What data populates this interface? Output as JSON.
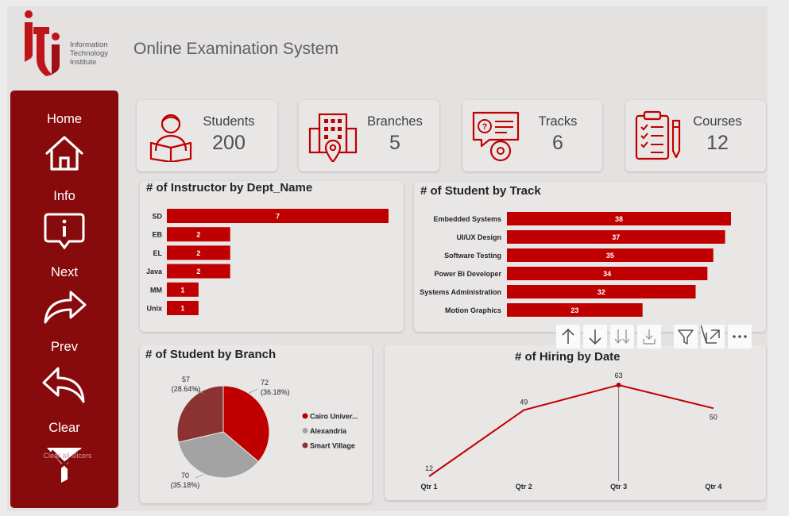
{
  "app": {
    "title": "Online Examination System",
    "logo_lines": [
      "Information",
      "Technology",
      "Institute"
    ],
    "logo_mark": "iti"
  },
  "sidebar": {
    "items": [
      {
        "label": "Home",
        "icon": "home-icon"
      },
      {
        "label": "Info",
        "icon": "info-icon"
      },
      {
        "label": "Next",
        "icon": "forward-arrow-icon"
      },
      {
        "label": "Prev",
        "icon": "back-arrow-icon"
      },
      {
        "label": "Clear",
        "icon": "clear-filter-icon"
      }
    ],
    "clear_overlay": "Clear all slicers"
  },
  "kpis": [
    {
      "label": "Students",
      "value": "200",
      "icon": "student-icon"
    },
    {
      "label": "Branches",
      "value": "5",
      "icon": "building-icon"
    },
    {
      "label": "Tracks",
      "value": "6",
      "icon": "track-icon"
    },
    {
      "label": "Courses",
      "value": "12",
      "icon": "clipboard-icon"
    }
  ],
  "colors": {
    "accent": "#c00000",
    "sidebar": "#870b0d",
    "grey": "#a0a0a0",
    "dark_red": "#8b3232"
  },
  "visual_toolbar": [
    "sort-ascending-icon",
    "sort-descending-icon",
    "expand-all-icon",
    "drill-down-icon",
    "filter-icon",
    "focus-mode-icon",
    "more-options-icon"
  ],
  "chart_data": [
    {
      "type": "bar",
      "orientation": "horizontal",
      "title": "# of Instructor by Dept_Name",
      "categories": [
        "SD",
        "EB",
        "EL",
        "Java",
        "MM",
        "Unix"
      ],
      "values": [
        7,
        2,
        2,
        2,
        1,
        1
      ],
      "xlim": [
        0,
        7
      ],
      "grid": false
    },
    {
      "type": "bar",
      "orientation": "horizontal",
      "title": "# of Student by Track",
      "categories": [
        "Embedded Systems",
        "UI/UX Design",
        "Software Testing",
        "Power Bi Developer",
        "Systems Administration",
        "Motion Graphics"
      ],
      "values": [
        38,
        37,
        35,
        34,
        32,
        23
      ],
      "xlim": [
        0,
        38
      ],
      "grid": false
    },
    {
      "type": "pie",
      "title": "# of Student by Branch",
      "labels": [
        "Cairo Univer...",
        "Alexandria",
        "Smart Village"
      ],
      "values": [
        72,
        70,
        57
      ],
      "percents": [
        "(36.18%)",
        "(35.18%)",
        "(28.64%)"
      ],
      "colors": [
        "#c00000",
        "#a3a3a3",
        "#8b3232"
      ],
      "legend": "right"
    },
    {
      "type": "line",
      "title": "# of Hiring by Date",
      "categories": [
        "Qtr 1",
        "Qtr 2",
        "Qtr 3",
        "Qtr 4"
      ],
      "values": [
        12,
        49,
        63,
        50
      ],
      "ylim": [
        12,
        63
      ],
      "grid": false
    }
  ]
}
